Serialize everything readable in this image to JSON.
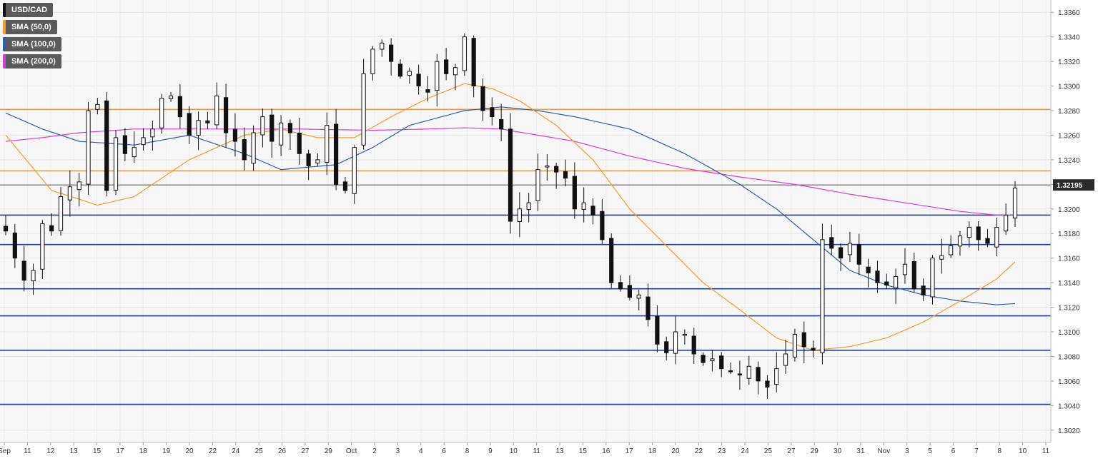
{
  "legend": [
    {
      "label": "USD/CAD",
      "color": "#111111"
    },
    {
      "label": "SMA (50,0)",
      "color": "#f59b29"
    },
    {
      "label": "SMA (100,0)",
      "color": "#2b5fad"
    },
    {
      "label": "SMA (200,0)",
      "color": "#d63fd6"
    }
  ],
  "chart_data": {
    "type": "line",
    "y_range": [
      1.301,
      1.337
    ],
    "y_ticks": [
      "1.3020",
      "1.3040",
      "1.3060",
      "1.3080",
      "1.3100",
      "1.3120",
      "1.3140",
      "1.3160",
      "1.3180",
      "1.3200",
      "1.3220",
      "1.3240",
      "1.3260",
      "1.3280",
      "1.3300",
      "1.3320",
      "1.3340",
      "1.3360"
    ],
    "x_ticks": [
      "Sep",
      "11",
      "12",
      "13",
      "15",
      "17",
      "18",
      "19",
      "20",
      "22",
      "24",
      "25",
      "26",
      "27",
      "29",
      "Oct",
      "2",
      "3",
      "4",
      "6",
      "8",
      "9",
      "10",
      "11",
      "13",
      "15",
      "16",
      "17",
      "18",
      "20",
      "22",
      "23",
      "24",
      "25",
      "27",
      "29",
      "30",
      "31",
      "Nov",
      "3",
      "5",
      "6",
      "7",
      "8",
      "10",
      "11"
    ],
    "current_price_label": "1.32195",
    "current_price": 1.32195,
    "horizontal_levels": [
      {
        "value": 1.3281,
        "color": "#f59b29"
      },
      {
        "value": 1.3231,
        "color": "#f59b29"
      },
      {
        "value": 1.3195,
        "color": "#1f3f8f"
      },
      {
        "value": 1.3171,
        "color": "#1f3f8f"
      },
      {
        "value": 1.3135,
        "color": "#1f3f8f"
      },
      {
        "value": 1.3113,
        "color": "#1f3f8f"
      },
      {
        "value": 1.3085,
        "color": "#1f3f8f"
      },
      {
        "value": 1.3041,
        "color": "#1f3f8f"
      }
    ],
    "price_anchors": [
      [
        0,
        1.3182
      ],
      [
        1,
        1.316
      ],
      [
        2,
        1.3142
      ],
      [
        3,
        1.315
      ],
      [
        4,
        1.3188
      ],
      [
        5,
        1.3182
      ],
      [
        6,
        1.321
      ],
      [
        7,
        1.3218
      ],
      [
        8,
        1.3222
      ],
      [
        9,
        1.328
      ],
      [
        10,
        1.3285
      ],
      [
        11,
        1.3215
      ],
      [
        12,
        1.3258
      ],
      [
        13,
        1.3245
      ],
      [
        14,
        1.325
      ],
      [
        15,
        1.3258
      ],
      [
        16,
        1.3265
      ],
      [
        17,
        1.329
      ],
      [
        18,
        1.3292
      ],
      [
        19,
        1.3275
      ],
      [
        20,
        1.326
      ],
      [
        21,
        1.3272
      ],
      [
        22,
        1.327
      ],
      [
        23,
        1.3292
      ],
      [
        24,
        1.3262
      ],
      [
        25,
        1.3255
      ],
      [
        26,
        1.324
      ],
      [
        27,
        1.3262
      ],
      [
        28,
        1.3275
      ],
      [
        29,
        1.3255
      ],
      [
        30,
        1.327
      ],
      [
        31,
        1.3262
      ],
      [
        32,
        1.3245
      ],
      [
        33,
        1.3235
      ],
      [
        34,
        1.324
      ],
      [
        35,
        1.3268
      ],
      [
        36,
        1.322
      ],
      [
        37,
        1.3215
      ],
      [
        38,
        1.325
      ],
      [
        39,
        1.331
      ],
      [
        40,
        1.333
      ],
      [
        41,
        1.3335
      ],
      [
        42,
        1.332
      ],
      [
        43,
        1.3308
      ],
      [
        44,
        1.3312
      ],
      [
        45,
        1.33
      ],
      [
        46,
        1.3295
      ],
      [
        47,
        1.332
      ],
      [
        48,
        1.331
      ],
      [
        49,
        1.3315
      ],
      [
        50,
        1.334
      ],
      [
        51,
        1.33
      ],
      [
        52,
        1.328
      ],
      [
        53,
        1.3275
      ],
      [
        54,
        1.3265
      ],
      [
        55,
        1.319
      ],
      [
        56,
        1.32
      ],
      [
        57,
        1.3205
      ],
      [
        58,
        1.3232
      ],
      [
        59,
        1.3235
      ],
      [
        60,
        1.323
      ],
      [
        61,
        1.3225
      ],
      [
        62,
        1.32
      ],
      [
        63,
        1.3205
      ],
      [
        64,
        1.3195
      ],
      [
        65,
        1.3175
      ],
      [
        66,
        1.314
      ],
      [
        67,
        1.3135
      ],
      [
        68,
        1.3128
      ],
      [
        69,
        1.313
      ],
      [
        70,
        1.311
      ],
      [
        71,
        1.309
      ],
      [
        72,
        1.3083
      ],
      [
        73,
        1.31
      ],
      [
        74,
        1.3098
      ],
      [
        75,
        1.3082
      ],
      [
        76,
        1.3075
      ],
      [
        77,
        1.3078
      ],
      [
        78,
        1.307
      ],
      [
        79,
        1.3068
      ],
      [
        80,
        1.3065
      ],
      [
        81,
        1.3072
      ],
      [
        82,
        1.306
      ],
      [
        83,
        1.3055
      ],
      [
        84,
        1.307
      ],
      [
        85,
        1.3082
      ],
      [
        86,
        1.3098
      ],
      [
        87,
        1.3088
      ],
      [
        88,
        1.3085
      ],
      [
        89,
        1.3175
      ],
      [
        90,
        1.3168
      ],
      [
        91,
        1.316
      ],
      [
        92,
        1.3172
      ],
      [
        93,
        1.3155
      ],
      [
        94,
        1.3148
      ],
      [
        95,
        1.314
      ],
      [
        96,
        1.3138
      ],
      [
        97,
        1.3145
      ],
      [
        98,
        1.3155
      ],
      [
        99,
        1.3135
      ],
      [
        100,
        1.313
      ],
      [
        101,
        1.316
      ],
      [
        102,
        1.3162
      ],
      [
        103,
        1.317
      ],
      [
        104,
        1.3178
      ],
      [
        105,
        1.3185
      ],
      [
        106,
        1.3175
      ],
      [
        107,
        1.3172
      ],
      [
        108,
        1.3185
      ],
      [
        109,
        1.3195
      ],
      [
        110,
        1.3217
      ]
    ],
    "sma_50": [
      [
        0,
        1.326
      ],
      [
        5,
        1.3215
      ],
      [
        8,
        1.3208
      ],
      [
        10,
        1.3203
      ],
      [
        14,
        1.321
      ],
      [
        20,
        1.324
      ],
      [
        26,
        1.326
      ],
      [
        30,
        1.3265
      ],
      [
        34,
        1.3258
      ],
      [
        38,
        1.3258
      ],
      [
        42,
        1.3275
      ],
      [
        46,
        1.329
      ],
      [
        50,
        1.3302
      ],
      [
        53,
        1.3298
      ],
      [
        56,
        1.3288
      ],
      [
        60,
        1.3268
      ],
      [
        64,
        1.324
      ],
      [
        68,
        1.32
      ],
      [
        72,
        1.317
      ],
      [
        76,
        1.314
      ],
      [
        80,
        1.3118
      ],
      [
        84,
        1.3095
      ],
      [
        88,
        1.3085
      ],
      [
        92,
        1.3088
      ],
      [
        96,
        1.3095
      ],
      [
        100,
        1.3108
      ],
      [
        104,
        1.3125
      ],
      [
        108,
        1.3143
      ],
      [
        110,
        1.3157
      ]
    ],
    "sma_100": [
      [
        0,
        1.3278
      ],
      [
        4,
        1.3265
      ],
      [
        8,
        1.3255
      ],
      [
        14,
        1.3252
      ],
      [
        20,
        1.326
      ],
      [
        26,
        1.3245
      ],
      [
        30,
        1.3232
      ],
      [
        36,
        1.3236
      ],
      [
        40,
        1.325
      ],
      [
        44,
        1.3268
      ],
      [
        50,
        1.328
      ],
      [
        54,
        1.3283
      ],
      [
        58,
        1.328
      ],
      [
        62,
        1.3275
      ],
      [
        68,
        1.3265
      ],
      [
        74,
        1.3245
      ],
      [
        80,
        1.322
      ],
      [
        84,
        1.32
      ],
      [
        88,
        1.3175
      ],
      [
        92,
        1.315
      ],
      [
        96,
        1.3138
      ],
      [
        100,
        1.313
      ],
      [
        104,
        1.3125
      ],
      [
        108,
        1.3122
      ],
      [
        110,
        1.3123
      ]
    ],
    "sma_200": [
      [
        0,
        1.3255
      ],
      [
        4,
        1.3258
      ],
      [
        8,
        1.3262
      ],
      [
        14,
        1.3265
      ],
      [
        20,
        1.3265
      ],
      [
        26,
        1.3265
      ],
      [
        32,
        1.3265
      ],
      [
        40,
        1.3264
      ],
      [
        46,
        1.3265
      ],
      [
        50,
        1.3266
      ],
      [
        54,
        1.3265
      ],
      [
        58,
        1.326
      ],
      [
        62,
        1.3255
      ],
      [
        68,
        1.3243
      ],
      [
        74,
        1.3233
      ],
      [
        80,
        1.3226
      ],
      [
        86,
        1.322
      ],
      [
        92,
        1.3212
      ],
      [
        98,
        1.3205
      ],
      [
        104,
        1.3198
      ],
      [
        108,
        1.3195
      ],
      [
        110,
        1.3195
      ]
    ]
  }
}
